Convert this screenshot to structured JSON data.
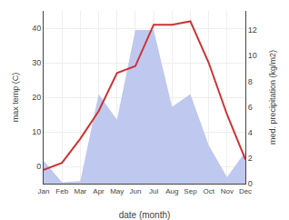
{
  "chart_data": {
    "type": "line",
    "categories": [
      "Jan",
      "Feb",
      "Mar",
      "Apr",
      "May",
      "Jun",
      "Jul",
      "Aug",
      "Sep",
      "Oct",
      "Nov",
      "Dec"
    ],
    "series": [
      {
        "type": "area",
        "axis": "y2",
        "color": "#bfc8ee",
        "values": [
          1.8,
          0.1,
          0.2,
          7.0,
          5.0,
          12.0,
          12.0,
          6.0,
          7.0,
          3.0,
          0.5,
          2.5
        ]
      },
      {
        "type": "line",
        "color": "#cc3333",
        "values": [
          -1,
          1,
          8,
          16,
          27,
          29,
          41,
          41,
          42,
          30,
          15,
          2
        ]
      }
    ],
    "xlabel": "date (month)",
    "ylabel": "max temp (C)",
    "y2label": "med. precipitation (kg/m2)",
    "ylim": [
      -5,
      45
    ],
    "yticks": [
      0,
      10,
      20,
      30,
      40
    ],
    "y2lim": [
      0,
      13.5
    ],
    "y2ticks": [
      0,
      2,
      4,
      6,
      8,
      10,
      12
    ],
    "grid": true
  }
}
